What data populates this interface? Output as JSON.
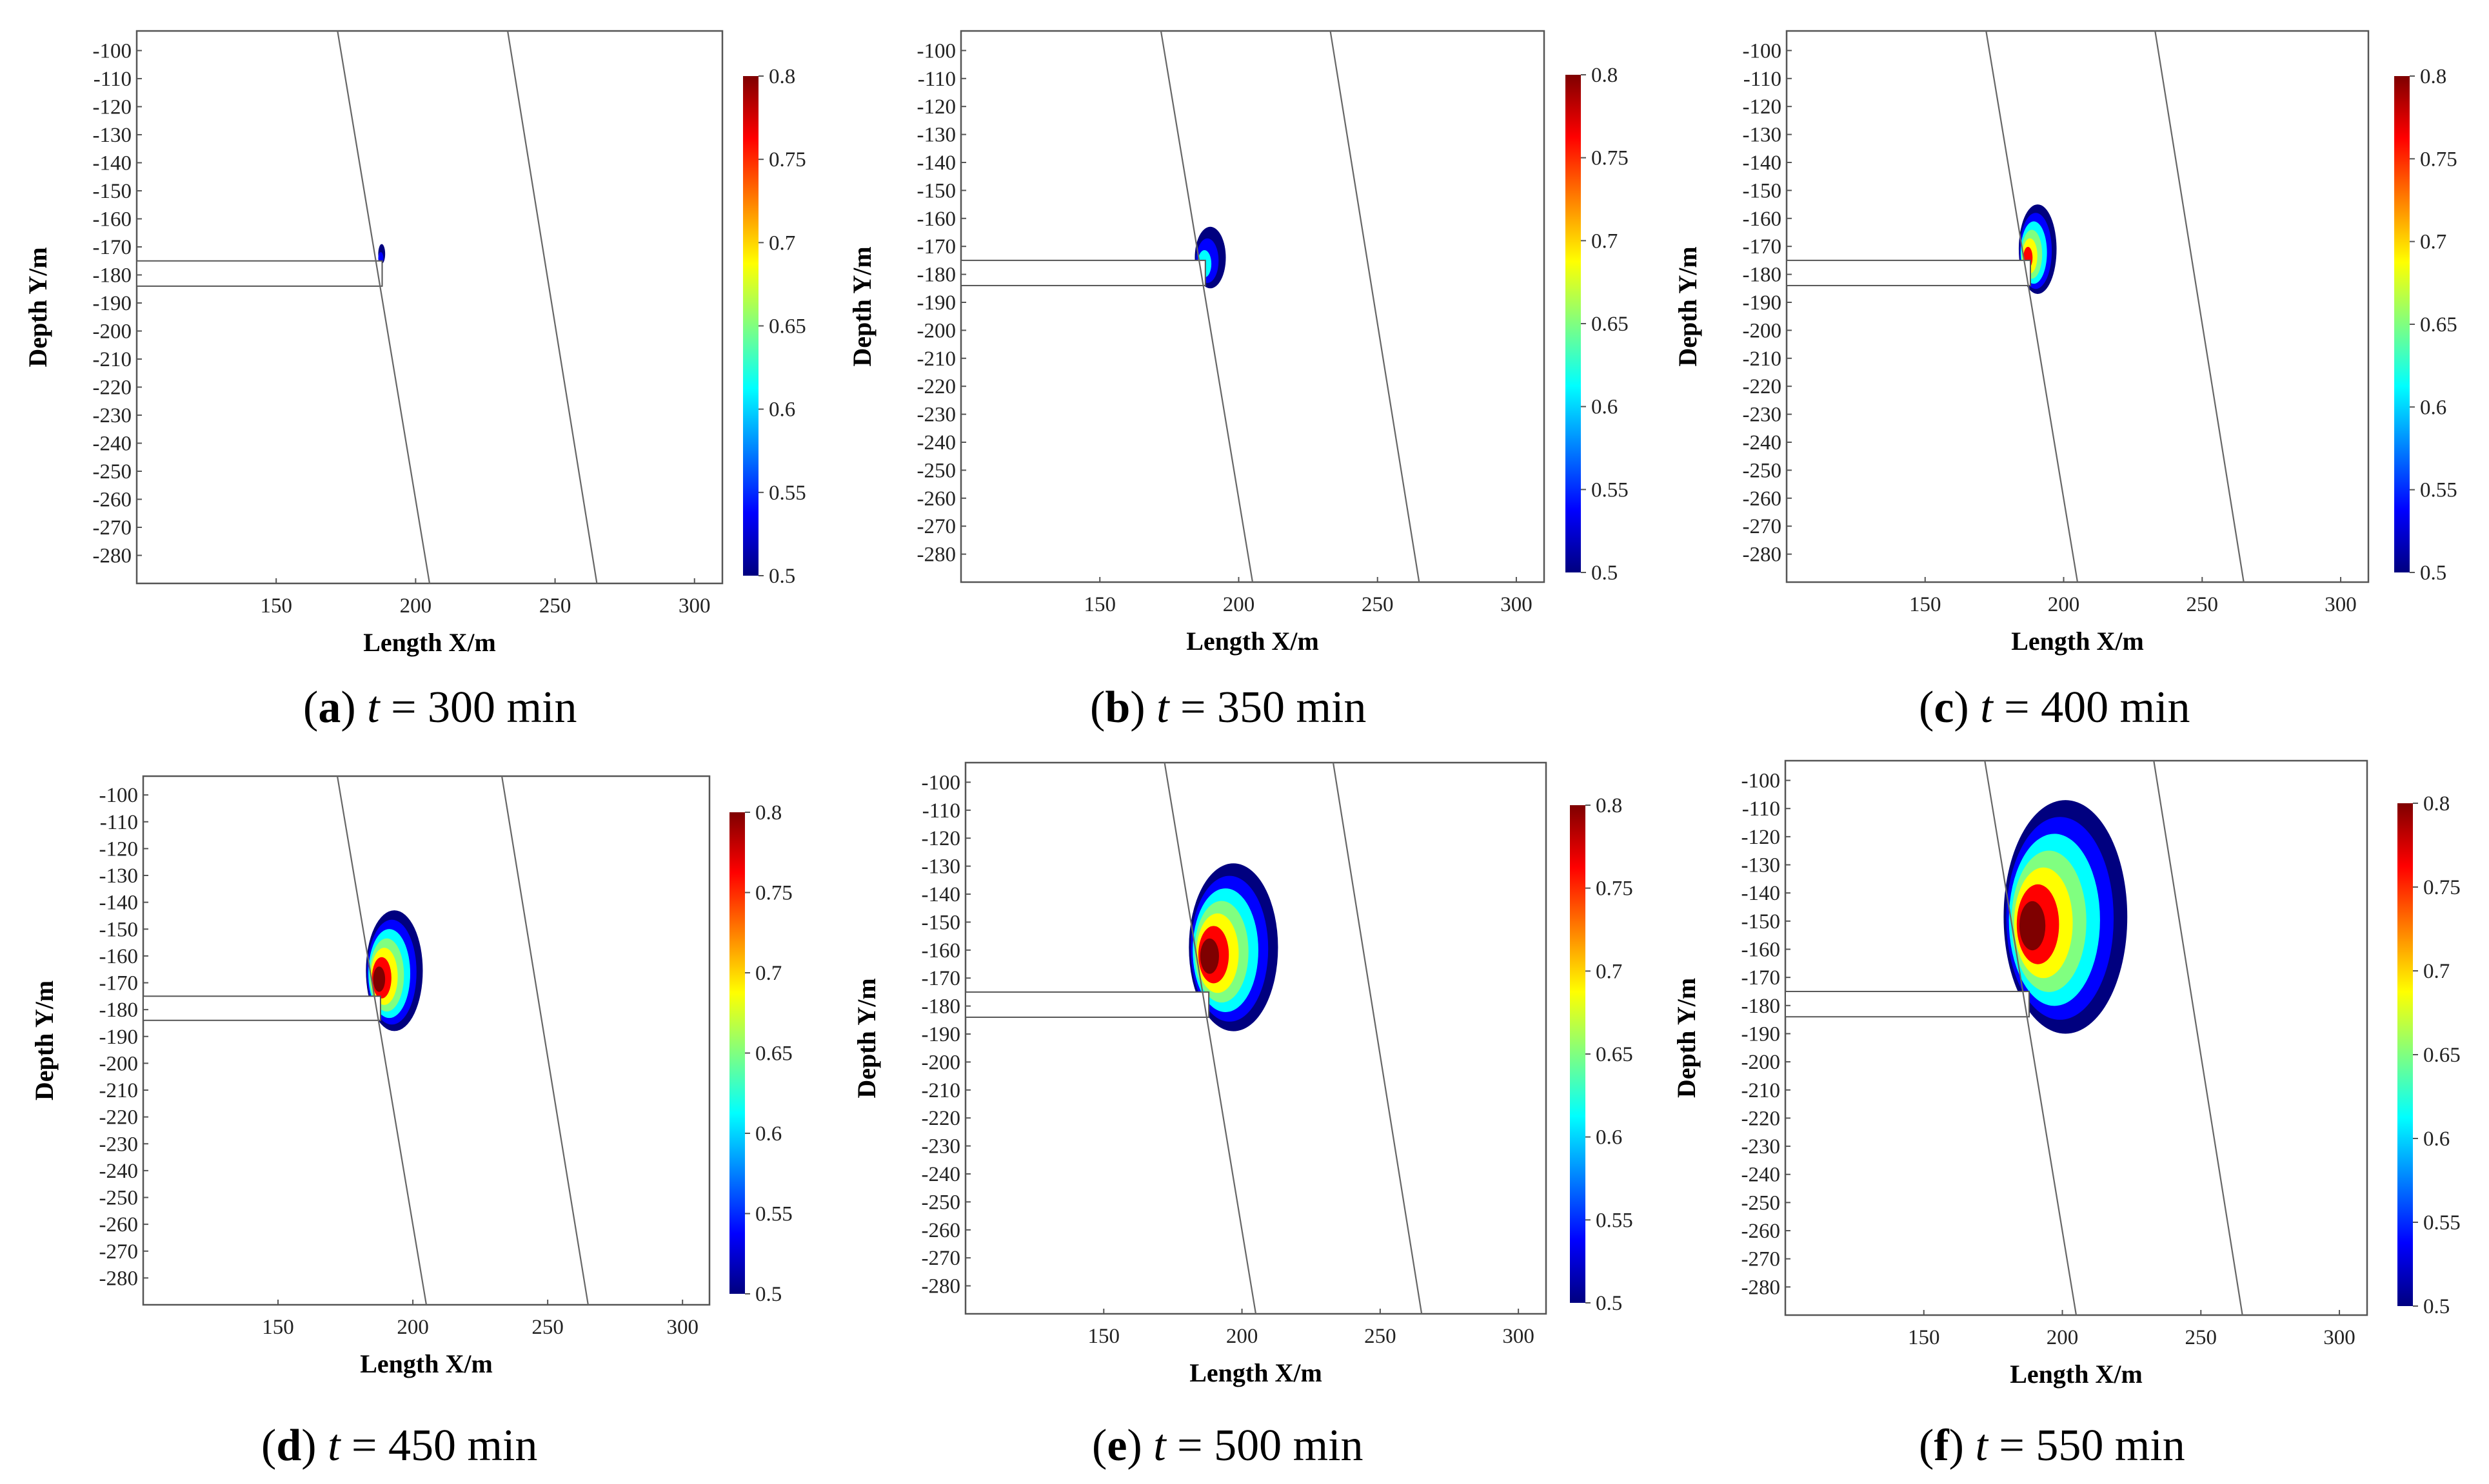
{
  "colors": {
    "jet": [
      "#00007f",
      "#0000ff",
      "#0080ff",
      "#00ffff",
      "#80ff80",
      "#ffff00",
      "#ff8000",
      "#ff0000",
      "#7f0000"
    ],
    "frame": "#555555",
    "fault": "#666666"
  },
  "colorbar": {
    "min": 0.5,
    "max": 0.8,
    "ticks": [
      "0.5",
      "0.55",
      "0.6",
      "0.65",
      "0.7",
      "0.75",
      "0.8"
    ]
  },
  "axis_titles": {
    "x": "Length X/m",
    "y": "Depth Y/m"
  },
  "chart_data": [
    {
      "type": "heatmap",
      "caption_letter": "a",
      "caption_time": "300",
      "xlim": [
        100,
        310
      ],
      "ylim": [
        -290,
        -93
      ],
      "x_ticks": [
        "150",
        "200",
        "250",
        "300"
      ],
      "y_ticks": [
        "-100",
        "-110",
        "-120",
        "-130",
        "-140",
        "-150",
        "-160",
        "-170",
        "-180",
        "-190",
        "-200",
        "-210",
        "-220",
        "-230",
        "-240",
        "-250",
        "-260",
        "-270",
        "-280"
      ],
      "faults": [
        {
          "x_top": 172,
          "x_bottom": 205
        },
        {
          "x_top": 233,
          "x_bottom": 265
        }
      ],
      "tunnel": {
        "x_start": 100,
        "x_end": 188,
        "y_top": -175,
        "y_bottom": -184
      },
      "plume": {
        "x_min": 187,
        "x_max": 189,
        "y_top": -169,
        "y_bottom": -176,
        "core_level": 0.55
      }
    },
    {
      "type": "heatmap",
      "caption_letter": "b",
      "caption_time": "350",
      "xlim": [
        100,
        310
      ],
      "ylim": [
        -290,
        -93
      ],
      "x_ticks": [
        "150",
        "200",
        "250",
        "300"
      ],
      "y_ticks": [
        "-100",
        "-110",
        "-120",
        "-130",
        "-140",
        "-150",
        "-160",
        "-170",
        "-180",
        "-190",
        "-200",
        "-210",
        "-220",
        "-230",
        "-240",
        "-250",
        "-260",
        "-270",
        "-280"
      ],
      "faults": [
        {
          "x_top": 172,
          "x_bottom": 205
        },
        {
          "x_top": 233,
          "x_bottom": 265
        }
      ],
      "tunnel": {
        "x_start": 100,
        "x_end": 188,
        "y_top": -175,
        "y_bottom": -184
      },
      "plume": {
        "x_min": 186,
        "x_max": 195,
        "y_top": -163,
        "y_bottom": -185,
        "core_level": 0.6
      }
    },
    {
      "type": "heatmap",
      "caption_letter": "c",
      "caption_time": "400",
      "xlim": [
        100,
        310
      ],
      "ylim": [
        -290,
        -93
      ],
      "x_ticks": [
        "150",
        "200",
        "250",
        "300"
      ],
      "y_ticks": [
        "-100",
        "-110",
        "-120",
        "-130",
        "-140",
        "-150",
        "-160",
        "-170",
        "-180",
        "-190",
        "-200",
        "-210",
        "-220",
        "-230",
        "-240",
        "-250",
        "-260",
        "-270",
        "-280"
      ],
      "faults": [
        {
          "x_top": 172,
          "x_bottom": 205
        },
        {
          "x_top": 233,
          "x_bottom": 265
        }
      ],
      "tunnel": {
        "x_start": 100,
        "x_end": 188,
        "y_top": -175,
        "y_bottom": -184
      },
      "plume": {
        "x_min": 186,
        "x_max": 197,
        "y_top": -155,
        "y_bottom": -187,
        "core_level": 0.75
      }
    },
    {
      "type": "heatmap",
      "caption_letter": "d",
      "caption_time": "450",
      "xlim": [
        100,
        310
      ],
      "ylim": [
        -290,
        -93
      ],
      "x_ticks": [
        "150",
        "200",
        "250",
        "300"
      ],
      "y_ticks": [
        "-100",
        "-110",
        "-120",
        "-130",
        "-140",
        "-150",
        "-160",
        "-170",
        "-180",
        "-190",
        "-200",
        "-210",
        "-220",
        "-230",
        "-240",
        "-250",
        "-260",
        "-270",
        "-280"
      ],
      "faults": [
        {
          "x_top": 172,
          "x_bottom": 205
        },
        {
          "x_top": 233,
          "x_bottom": 265
        }
      ],
      "tunnel": {
        "x_start": 100,
        "x_end": 188,
        "y_top": -175,
        "y_bottom": -184
      },
      "plume": {
        "x_min": 186,
        "x_max": 203,
        "y_top": -143,
        "y_bottom": -188,
        "core_level": 0.8
      }
    },
    {
      "type": "heatmap",
      "caption_letter": "e",
      "caption_time": "500",
      "xlim": [
        100,
        310
      ],
      "ylim": [
        -290,
        -93
      ],
      "x_ticks": [
        "150",
        "200",
        "250",
        "300"
      ],
      "y_ticks": [
        "-100",
        "-110",
        "-120",
        "-130",
        "-140",
        "-150",
        "-160",
        "-170",
        "-180",
        "-190",
        "-200",
        "-210",
        "-220",
        "-230",
        "-240",
        "-250",
        "-260",
        "-270",
        "-280"
      ],
      "faults": [
        {
          "x_top": 172,
          "x_bottom": 205
        },
        {
          "x_top": 233,
          "x_bottom": 265
        }
      ],
      "tunnel": {
        "x_start": 100,
        "x_end": 188,
        "y_top": -175,
        "y_bottom": -184
      },
      "plume": {
        "x_min": 186,
        "x_max": 212,
        "y_top": -129,
        "y_bottom": -189,
        "core_level": 0.8
      }
    },
    {
      "type": "heatmap",
      "caption_letter": "f",
      "caption_time": "550",
      "xlim": [
        100,
        310
      ],
      "ylim": [
        -290,
        -93
      ],
      "x_ticks": [
        "150",
        "200",
        "250",
        "300"
      ],
      "y_ticks": [
        "-100",
        "-110",
        "-120",
        "-130",
        "-140",
        "-150",
        "-160",
        "-170",
        "-180",
        "-190",
        "-200",
        "-210",
        "-220",
        "-230",
        "-240",
        "-250",
        "-260",
        "-270",
        "-280"
      ],
      "faults": [
        {
          "x_top": 172,
          "x_bottom": 205
        },
        {
          "x_top": 233,
          "x_bottom": 265
        }
      ],
      "tunnel": {
        "x_start": 100,
        "x_end": 188,
        "y_top": -175,
        "y_bottom": -184
      },
      "plume": {
        "x_min": 186,
        "x_max": 222,
        "y_top": -107,
        "y_bottom": -190,
        "core_level": 0.8
      }
    }
  ]
}
